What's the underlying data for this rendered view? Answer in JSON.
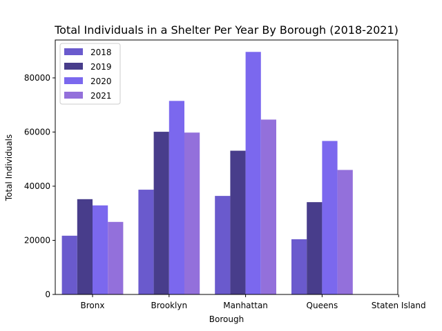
{
  "chart_data": {
    "type": "bar",
    "title": "Total Individuals in a Shelter Per Year By Borough (2018-2021)",
    "xlabel": "Borough",
    "ylabel": "Total Individuals",
    "categories": [
      "Bronx",
      "Brooklyn",
      "Manhattan",
      "Queens",
      "Staten Island"
    ],
    "series": [
      {
        "name": "2018",
        "color": "#6a5acd",
        "values": [
          21700,
          38700,
          36400,
          20400,
          null
        ]
      },
      {
        "name": "2019",
        "color": "#483d8b",
        "values": [
          35200,
          60100,
          53100,
          34100,
          null
        ]
      },
      {
        "name": "2020",
        "color": "#7b68ee",
        "values": [
          32900,
          71500,
          89600,
          56700,
          null
        ]
      },
      {
        "name": "2021",
        "color": "#9370db",
        "values": [
          26800,
          59800,
          64600,
          46000,
          null
        ]
      }
    ],
    "ylim": [
      0,
      94000
    ],
    "yticks": [
      0,
      20000,
      40000,
      60000,
      80000
    ],
    "legend_position": "top-left",
    "grid": false
  }
}
